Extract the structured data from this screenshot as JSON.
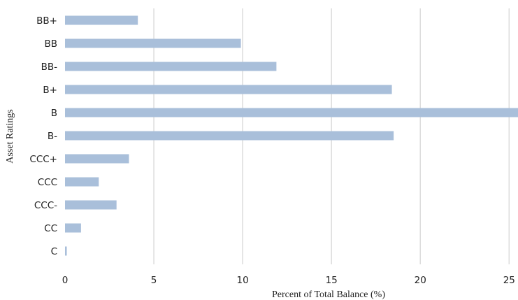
{
  "chart_data": {
    "type": "bar",
    "orientation": "horizontal",
    "title": "",
    "xlabel": "Percent of Total Balance (%)",
    "ylabel": "Asset Ratings",
    "categories": [
      "BB+",
      "BB",
      "BB-",
      "B+",
      "B",
      "B-",
      "CCC+",
      "CCC",
      "CCC-",
      "CC",
      "C"
    ],
    "values": [
      4.1,
      9.9,
      11.9,
      18.4,
      25.5,
      18.5,
      3.6,
      1.9,
      2.9,
      0.9,
      0.1
    ],
    "xlim": [
      0,
      25.5
    ],
    "xticks": [
      "0",
      "5",
      "10",
      "15",
      "20",
      "25"
    ],
    "grid": "vertical",
    "bar_color": "#a9bfda"
  }
}
